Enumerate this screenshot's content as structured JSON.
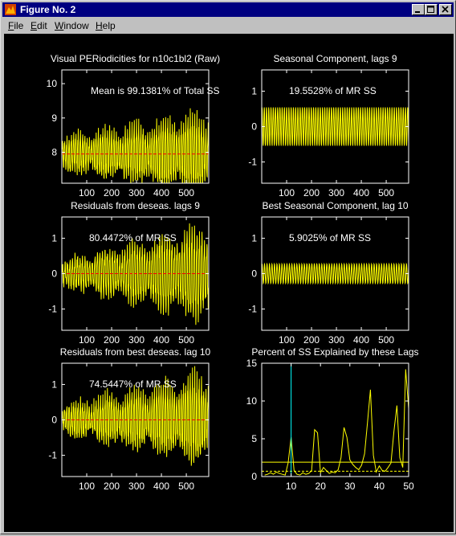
{
  "window": {
    "title": "Figure No. 2",
    "minimize_icon": "minimize-icon",
    "maximize_icon": "maximize-icon",
    "close_icon": "close-icon",
    "app_icon": "matlab-logo-icon"
  },
  "menu": {
    "items": [
      {
        "label": "File",
        "accel": "F",
        "rest": "ile"
      },
      {
        "label": "Edit",
        "accel": "E",
        "rest": "dit"
      },
      {
        "label": "Window",
        "accel": "W",
        "rest": "indow"
      },
      {
        "label": "Help",
        "accel": "H",
        "rest": "elp"
      }
    ]
  },
  "colors": {
    "background": "#000000",
    "axes": "#ffffff",
    "signal": "#ffff00",
    "mean_line": "#ff0000",
    "marker_line": "#00ffff",
    "titlebar": "#000080"
  },
  "chart_data": [
    {
      "type": "line",
      "title": "Visual PERiodicities for n10c1bl2 (Raw)",
      "annotation": "Mean is 99.1381% of Total SS",
      "xlim": [
        0,
        590
      ],
      "ylim": [
        7.1,
        10.4
      ],
      "x_ticks": [
        100,
        200,
        300,
        400,
        500
      ],
      "y_ticks": [
        8,
        9,
        10
      ],
      "series": [
        {
          "kind": "oscillation",
          "period": 9,
          "n": 590,
          "mean": 7.95,
          "amp_start": 0.5,
          "amp_end": 1.25
        }
      ],
      "hline": 7.95
    },
    {
      "type": "line",
      "title": "Seasonal Component, lags 9",
      "annotation": "19.5528% of MR SS",
      "xlim": [
        0,
        590
      ],
      "ylim": [
        -1.6,
        1.6
      ],
      "x_ticks": [
        100,
        200,
        300,
        400,
        500
      ],
      "y_ticks": [
        -1,
        0,
        1
      ],
      "series": [
        {
          "kind": "seasonal",
          "period": 9,
          "n": 590,
          "mean": 0,
          "amp": 0.55
        }
      ]
    },
    {
      "type": "line",
      "title": "Residuals from deseas. lags 9",
      "annotation": "80.4472% of MR SS",
      "xlim": [
        0,
        590
      ],
      "ylim": [
        -1.6,
        1.6
      ],
      "x_ticks": [
        100,
        200,
        300,
        400,
        500
      ],
      "y_ticks": [
        -1,
        0,
        1
      ],
      "series": [
        {
          "kind": "oscillation",
          "period": 10,
          "n": 590,
          "mean": 0,
          "amp_start": 0.35,
          "amp_end": 1.4
        }
      ],
      "hline": 0
    },
    {
      "type": "line",
      "title": "Best Seasonal Component, lag 10",
      "annotation": "5.9025% of MR SS",
      "xlim": [
        0,
        590
      ],
      "ylim": [
        -1.6,
        1.6
      ],
      "x_ticks": [
        100,
        200,
        300,
        400,
        500
      ],
      "y_ticks": [
        -1,
        0,
        1
      ],
      "series": [
        {
          "kind": "seasonal",
          "period": 10,
          "n": 590,
          "mean": 0,
          "amp": 0.28
        }
      ]
    },
    {
      "type": "line",
      "title": "Residuals from best deseas. lag 10",
      "annotation": "74.5447% of MR SS",
      "xlim": [
        0,
        590
      ],
      "ylim": [
        -1.6,
        1.6
      ],
      "x_ticks": [
        100,
        200,
        300,
        400,
        500
      ],
      "y_ticks": [
        -1,
        0,
        1
      ],
      "series": [
        {
          "kind": "oscillation",
          "period": 9,
          "n": 590,
          "mean": 0,
          "amp_start": 0.4,
          "amp_end": 1.35
        }
      ],
      "hline": 0
    },
    {
      "type": "line",
      "title": "Percent of SS Explained by these Lags",
      "annotation": "",
      "xlim": [
        0,
        50
      ],
      "ylim": [
        0,
        15
      ],
      "x_ticks": [
        10,
        20,
        30,
        40,
        50
      ],
      "y_ticks": [
        0,
        5,
        10,
        15
      ],
      "series": [
        {
          "kind": "points",
          "x": [
            1,
            2,
            3,
            4,
            5,
            6,
            7,
            8,
            9,
            10,
            11,
            12,
            13,
            14,
            15,
            16,
            17,
            18,
            19,
            20,
            21,
            22,
            23,
            24,
            25,
            26,
            27,
            28,
            29,
            30,
            31,
            32,
            33,
            34,
            35,
            36,
            37,
            38,
            39,
            40,
            41,
            42,
            43,
            44,
            45,
            46,
            47,
            48,
            49,
            50
          ],
          "y": [
            0.2,
            0.3,
            0.5,
            0.3,
            0.6,
            0.4,
            0.3,
            0.2,
            1.8,
            5.2,
            0.8,
            0.3,
            0.2,
            0.5,
            0.3,
            0.4,
            0.8,
            6.2,
            5.8,
            0.5,
            1.2,
            0.8,
            0.4,
            0.6,
            0.5,
            0.9,
            2.5,
            6.5,
            5.2,
            2.2,
            1.6,
            1.2,
            0.9,
            1.5,
            3.0,
            7.2,
            11.5,
            2.8,
            0.6,
            1.4,
            0.8,
            0.7,
            1.2,
            1.8,
            6.0,
            9.4,
            2.5,
            1.2,
            14.2,
            9.0
          ]
        }
      ],
      "hlines": [
        {
          "y": 1.9,
          "style": "solid"
        },
        {
          "y": 0.7,
          "style": "dashed"
        }
      ],
      "vline": 10
    }
  ]
}
